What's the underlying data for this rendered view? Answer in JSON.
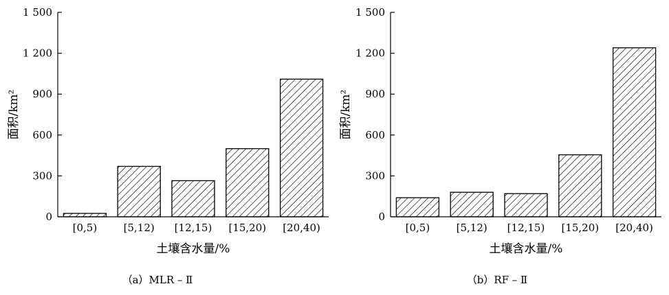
{
  "chart_data": [
    {
      "type": "bar",
      "caption": "（a）MLR – Ⅱ",
      "xlabel": "土壤含水量/%",
      "ylabel": "面积/km²",
      "categories": [
        "[0,5)",
        "[5,12)",
        "[12,15)",
        "[15,20)",
        "[20,40)"
      ],
      "values": [
        25,
        370,
        265,
        500,
        1010
      ],
      "ylim": [
        0,
        1500
      ],
      "yticks": [
        0,
        300,
        600,
        900,
        1200,
        1500
      ],
      "ytick_labels": [
        "0",
        "300",
        "600",
        "900",
        "1 200",
        "1 500"
      ],
      "bar_fill": "diagonal-hatch",
      "grid": false
    },
    {
      "type": "bar",
      "caption": "（b）RF – Ⅱ",
      "xlabel": "土壤含水量/%",
      "ylabel": "面积/km²",
      "categories": [
        "[0,5)",
        "[5,12)",
        "[12,15)",
        "[15,20)",
        "[20,40)"
      ],
      "values": [
        140,
        180,
        170,
        455,
        1240
      ],
      "ylim": [
        0,
        1500
      ],
      "yticks": [
        0,
        300,
        600,
        900,
        1200,
        1500
      ],
      "ytick_labels": [
        "0",
        "300",
        "600",
        "900",
        "1 200",
        "1 500"
      ],
      "bar_fill": "diagonal-hatch",
      "grid": false
    }
  ]
}
